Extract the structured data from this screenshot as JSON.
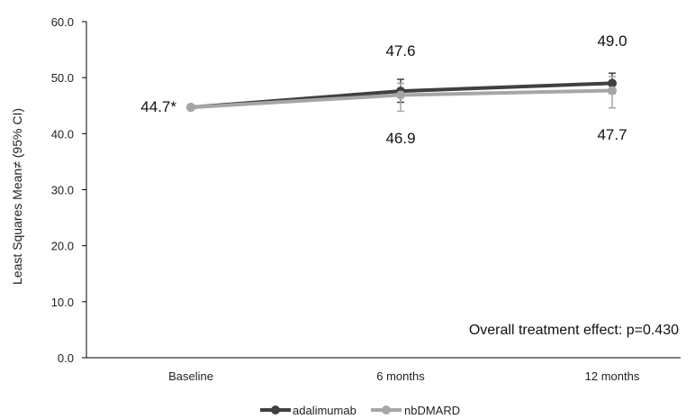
{
  "chart_data": {
    "type": "line",
    "categories": [
      "Baseline",
      "6 months",
      "12 months"
    ],
    "series": [
      {
        "name": "adalimumab",
        "color": "#404040",
        "values": [
          44.7,
          47.6,
          49.0
        ],
        "ci_lower": [
          null,
          45.6,
          47.2
        ],
        "ci_upper": [
          null,
          49.7,
          50.8
        ]
      },
      {
        "name": "nbDMARD",
        "color": "#a6a6a6",
        "values": [
          44.7,
          46.9,
          47.7
        ],
        "ci_lower": [
          null,
          44.0,
          44.6
        ],
        "ci_upper": [
          null,
          49.0,
          50.2
        ]
      }
    ],
    "data_labels": {
      "baseline": "44.7*",
      "adalimumab": [
        "47.6",
        "49.0"
      ],
      "nbDMARD": [
        "46.9",
        "47.7"
      ]
    },
    "ylabel": "Least Squares Mean≠ (95% CI)",
    "ylim": [
      0,
      60
    ],
    "yticks": [
      "0.0",
      "10.0",
      "20.0",
      "30.0",
      "40.0",
      "50.0",
      "60.0"
    ],
    "annotation": "Overall treatment effect: p=0.430",
    "legend_position": "bottom-center",
    "grid": false
  }
}
